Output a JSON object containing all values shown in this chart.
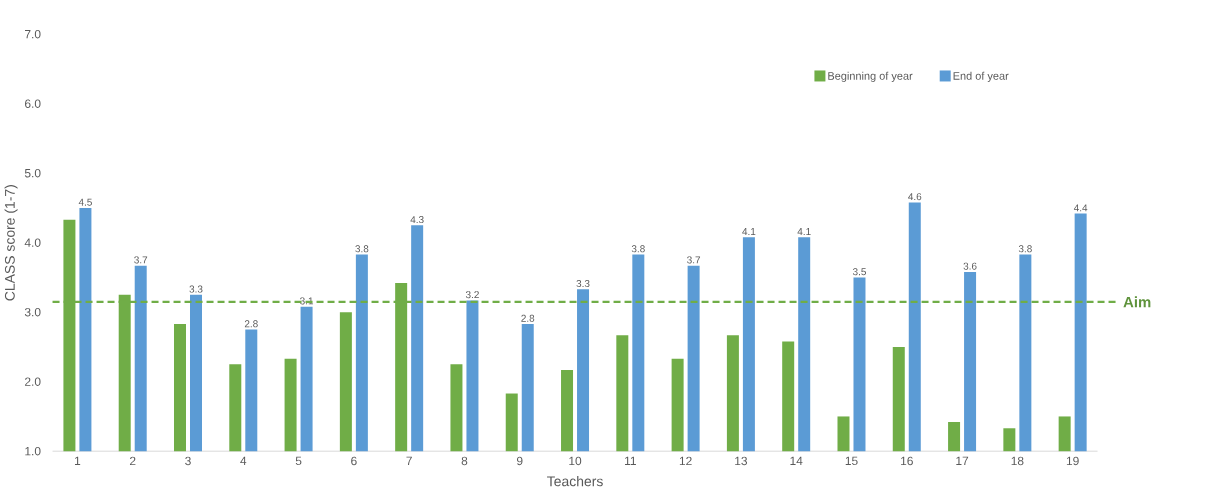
{
  "chart_data": {
    "type": "bar",
    "xlabel": "Teachers",
    "ylabel": "CLASS score (1-7)",
    "categories": [
      "1",
      "2",
      "3",
      "4",
      "5",
      "6",
      "7",
      "8",
      "9",
      "10",
      "11",
      "12",
      "13",
      "14",
      "15",
      "16",
      "17",
      "18",
      "19"
    ],
    "series": [
      {
        "name": "Beginning of year",
        "color": "#70ad47",
        "values": [
          4.33,
          3.25,
          2.83,
          2.25,
          2.33,
          3.0,
          3.42,
          2.25,
          1.83,
          2.17,
          2.67,
          2.33,
          2.67,
          2.58,
          1.5,
          2.5,
          1.42,
          1.33,
          1.5
        ]
      },
      {
        "name": "End of year",
        "color": "#5b9bd5",
        "values": [
          4.5,
          3.67,
          3.25,
          2.75,
          3.08,
          3.83,
          4.25,
          3.17,
          2.83,
          3.33,
          3.83,
          3.67,
          4.08,
          4.08,
          3.5,
          4.58,
          3.58,
          3.83,
          4.42
        ],
        "value_labels": [
          "4.5",
          "3.7",
          "3.3",
          "2.8",
          "3.1",
          "3.8",
          "4.3",
          "3.2",
          "2.8",
          "3.3",
          "3.8",
          "3.7",
          "4.1",
          "4.1",
          "3.5",
          "4.6",
          "3.6",
          "3.8",
          "4.4"
        ]
      }
    ],
    "ylim": [
      1,
      7
    ],
    "yticks": [
      {
        "value": 1,
        "label": "1.0"
      },
      {
        "value": 2,
        "label": "2.0"
      },
      {
        "value": 3,
        "label": "3.0"
      },
      {
        "value": 4,
        "label": "4.0"
      },
      {
        "value": 5,
        "label": "5.0"
      },
      {
        "value": 6,
        "label": "6.0"
      },
      {
        "value": 7,
        "label": "7.0"
      }
    ],
    "legend": "top right",
    "ref_lines": [
      {
        "axis": "y",
        "value": 3.15,
        "label": "Aim",
        "color": "#70ad47",
        "line_style": "dashed"
      }
    ]
  }
}
